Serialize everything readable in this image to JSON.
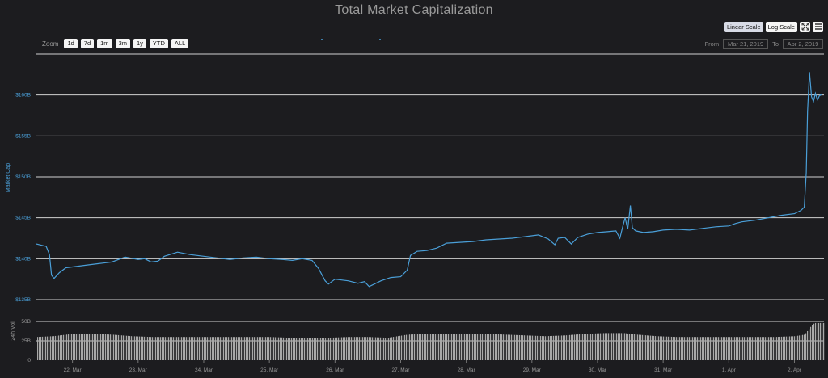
{
  "title": "Total Market Capitalization",
  "zoom": {
    "label": "Zoom",
    "buttons": [
      "1d",
      "7d",
      "1m",
      "3m",
      "1y",
      "YTD",
      "ALL"
    ]
  },
  "scale": {
    "linear_label": "Linear Scale",
    "log_label": "Log Scale",
    "active": "Linear Scale"
  },
  "range": {
    "from_label": "From",
    "from_value": "Mar 21, 2019",
    "to_label": "To",
    "to_value": "Apr 2, 2019"
  },
  "colors": {
    "background": "#1c1c1f",
    "line": "#4a9fd8",
    "grid": "#d0d0d0",
    "volume": "#a9a9a9"
  },
  "chart_data": [
    {
      "type": "line",
      "ylabel": "Market Cap",
      "yticks": [
        "$135B",
        "$140B",
        "$145B",
        "$150B",
        "$155B",
        "$160B"
      ],
      "ylim": [
        135,
        165
      ],
      "xticks": [
        "22. Mar",
        "23. Mar",
        "24. Mar",
        "25. Mar",
        "26. Mar",
        "27. Mar",
        "28. Mar",
        "29. Mar",
        "30. Mar",
        "31. Mar",
        "1. Apr",
        "2. Apr"
      ],
      "xlim": [
        21.45,
        33.45
      ],
      "series": [
        {
          "points": [
            [
              21.45,
              141.8
            ],
            [
              21.55,
              141.6
            ],
            [
              21.6,
              141.5
            ],
            [
              21.65,
              140.5
            ],
            [
              21.68,
              138.0
            ],
            [
              21.72,
              137.6
            ],
            [
              21.8,
              138.3
            ],
            [
              21.9,
              138.9
            ],
            [
              22.0,
              139.0
            ],
            [
              22.2,
              139.2
            ],
            [
              22.4,
              139.4
            ],
            [
              22.6,
              139.6
            ],
            [
              22.8,
              140.2
            ],
            [
              23.0,
              139.9
            ],
            [
              23.1,
              140.0
            ],
            [
              23.2,
              139.6
            ],
            [
              23.3,
              139.7
            ],
            [
              23.4,
              140.3
            ],
            [
              23.6,
              140.8
            ],
            [
              23.8,
              140.5
            ],
            [
              24.0,
              140.3
            ],
            [
              24.2,
              140.1
            ],
            [
              24.4,
              139.9
            ],
            [
              24.6,
              140.1
            ],
            [
              24.8,
              140.2
            ],
            [
              25.0,
              140.0
            ],
            [
              25.2,
              139.9
            ],
            [
              25.35,
              139.8
            ],
            [
              25.5,
              140.0
            ],
            [
              25.65,
              139.8
            ],
            [
              25.75,
              138.8
            ],
            [
              25.85,
              137.3
            ],
            [
              25.9,
              136.9
            ],
            [
              26.0,
              137.5
            ],
            [
              26.2,
              137.3
            ],
            [
              26.35,
              137.0
            ],
            [
              26.45,
              137.2
            ],
            [
              26.52,
              136.6
            ],
            [
              26.6,
              136.9
            ],
            [
              26.7,
              137.3
            ],
            [
              26.85,
              137.7
            ],
            [
              27.0,
              137.8
            ],
            [
              27.1,
              138.6
            ],
            [
              27.15,
              140.4
            ],
            [
              27.25,
              140.9
            ],
            [
              27.4,
              141.0
            ],
            [
              27.55,
              141.3
            ],
            [
              27.7,
              141.9
            ],
            [
              27.9,
              142.0
            ],
            [
              28.1,
              142.1
            ],
            [
              28.3,
              142.3
            ],
            [
              28.5,
              142.4
            ],
            [
              28.7,
              142.5
            ],
            [
              28.9,
              142.7
            ],
            [
              29.1,
              142.9
            ],
            [
              29.25,
              142.4
            ],
            [
              29.35,
              141.7
            ],
            [
              29.4,
              142.5
            ],
            [
              29.5,
              142.6
            ],
            [
              29.6,
              141.8
            ],
            [
              29.7,
              142.6
            ],
            [
              29.85,
              143.0
            ],
            [
              30.0,
              143.2
            ],
            [
              30.15,
              143.3
            ],
            [
              30.28,
              143.4
            ],
            [
              30.34,
              142.5
            ],
            [
              30.38,
              143.8
            ],
            [
              30.42,
              145.0
            ],
            [
              30.46,
              143.6
            ],
            [
              30.5,
              146.5
            ],
            [
              30.53,
              143.8
            ],
            [
              30.58,
              143.4
            ],
            [
              30.7,
              143.2
            ],
            [
              30.85,
              143.3
            ],
            [
              31.0,
              143.5
            ],
            [
              31.2,
              143.6
            ],
            [
              31.4,
              143.5
            ],
            [
              31.6,
              143.7
            ],
            [
              31.8,
              143.9
            ],
            [
              32.0,
              144.0
            ],
            [
              32.1,
              144.3
            ],
            [
              32.2,
              144.5
            ],
            [
              32.4,
              144.7
            ],
            [
              32.6,
              145.0
            ],
            [
              32.8,
              145.3
            ],
            [
              33.0,
              145.5
            ],
            [
              33.1,
              145.9
            ],
            [
              33.15,
              146.3
            ],
            [
              33.18,
              150.5
            ],
            [
              33.2,
              158.0
            ],
            [
              33.23,
              162.8
            ],
            [
              33.26,
              159.8
            ],
            [
              33.29,
              159.2
            ],
            [
              33.32,
              160.2
            ],
            [
              33.35,
              159.4
            ],
            [
              33.38,
              159.9
            ],
            [
              33.42,
              160.1
            ]
          ]
        }
      ]
    },
    {
      "type": "bar",
      "ylabel": "24h Vol",
      "yticks": [
        "0",
        "25B",
        "50B"
      ],
      "ylim": [
        0,
        50
      ],
      "xlim": [
        21.45,
        33.45
      ],
      "series": [
        {
          "points": [
            [
              21.45,
              30
            ],
            [
              21.7,
              31
            ],
            [
              22.0,
              34
            ],
            [
              22.3,
              34
            ],
            [
              22.6,
              33
            ],
            [
              22.9,
              31
            ],
            [
              23.2,
              30
            ],
            [
              23.5,
              30
            ],
            [
              23.8,
              30
            ],
            [
              24.1,
              30
            ],
            [
              24.4,
              30
            ],
            [
              24.7,
              30
            ],
            [
              25.0,
              30
            ],
            [
              25.3,
              29
            ],
            [
              25.6,
              29
            ],
            [
              25.9,
              29
            ],
            [
              26.2,
              30
            ],
            [
              26.5,
              30
            ],
            [
              26.8,
              29
            ],
            [
              27.1,
              33
            ],
            [
              27.4,
              34
            ],
            [
              27.7,
              34
            ],
            [
              28.0,
              34
            ],
            [
              28.3,
              34
            ],
            [
              28.6,
              33
            ],
            [
              28.9,
              32
            ],
            [
              29.2,
              31
            ],
            [
              29.5,
              32
            ],
            [
              29.8,
              34
            ],
            [
              30.1,
              35
            ],
            [
              30.4,
              35
            ],
            [
              30.6,
              33
            ],
            [
              30.9,
              31
            ],
            [
              31.2,
              30
            ],
            [
              31.5,
              30
            ],
            [
              31.8,
              30
            ],
            [
              32.1,
              30
            ],
            [
              32.4,
              30
            ],
            [
              32.7,
              30
            ],
            [
              33.0,
              31
            ],
            [
              33.15,
              33
            ],
            [
              33.25,
              44
            ],
            [
              33.3,
              48
            ],
            [
              33.35,
              48
            ],
            [
              33.4,
              48
            ]
          ]
        }
      ]
    }
  ]
}
